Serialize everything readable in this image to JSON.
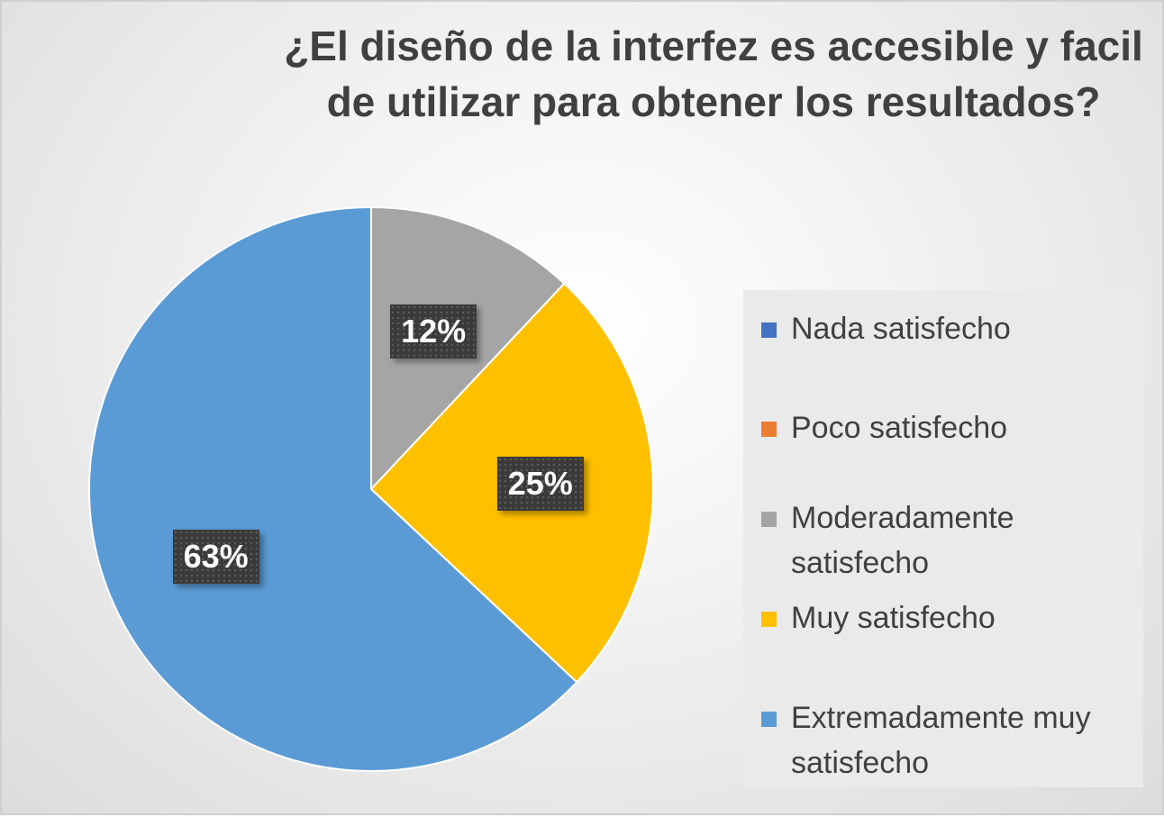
{
  "chart_data": {
    "type": "pie",
    "title": [
      "¿El diseño de la interfez es accesible y facil",
      "de utilizar para obtener los resultados?"
    ],
    "categories": [
      "Nada satisfecho",
      "Poco satisfecho",
      "Moderadamente satisfecho",
      "Muy satisfecho",
      "Extremadamente muy satisfecho"
    ],
    "values": [
      0,
      0,
      12,
      25,
      63
    ],
    "labels": [
      "",
      "",
      "12%",
      "25%",
      "63%"
    ],
    "colors": [
      "#4472c4",
      "#ed7d31",
      "#a5a5a5",
      "#ffc000",
      "#5b9bd5"
    ],
    "legend_position": "right"
  },
  "legend": {
    "items": [
      {
        "label": "Nada satisfecho",
        "color": "#4472c4"
      },
      {
        "label": "Poco satisfecho",
        "color": "#ed7d31"
      },
      {
        "label": "Moderadamente satisfecho",
        "color": "#a5a5a5"
      },
      {
        "label": "Muy satisfecho",
        "color": "#ffc000"
      },
      {
        "label": "Extremadamente muy satisfecho",
        "color": "#5b9bd5"
      }
    ]
  }
}
